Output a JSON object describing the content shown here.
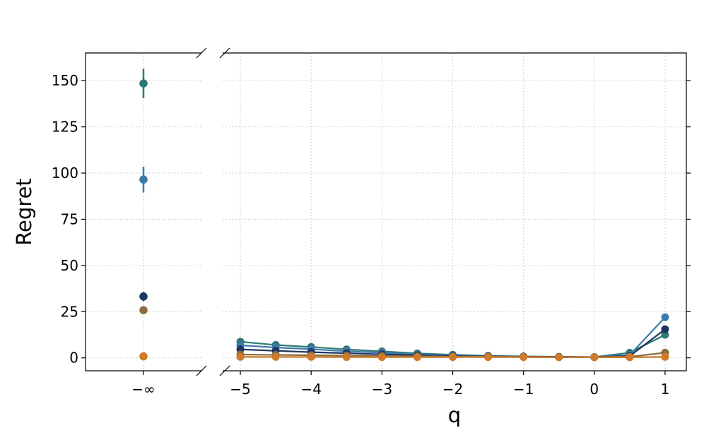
{
  "chart_data": {
    "type": "line",
    "title": "",
    "xlabel": "q",
    "ylabel": "Regret",
    "ylim": [
      -7,
      165
    ],
    "yticks": [
      0,
      25,
      50,
      75,
      100,
      125,
      150
    ],
    "ytick_labels": [
      "0",
      "25",
      "50",
      "75",
      "100",
      "125",
      "150"
    ],
    "left_panel": {
      "xtick_label": "−∞"
    },
    "right_panel": {
      "xlim": [
        -5.25,
        1.3
      ],
      "xticks": [
        -5,
        -4,
        -3,
        -2,
        -1,
        0,
        1
      ],
      "xtick_labels": [
        "−5",
        "−4",
        "−3",
        "−2",
        "−1",
        "0",
        "1"
      ]
    },
    "grid": true,
    "axis_break": true,
    "x": [
      -5,
      -4.5,
      -4,
      -3.5,
      -3,
      -2.5,
      -2,
      -1.5,
      -1,
      -0.5,
      0,
      0.5,
      1
    ],
    "series": [
      {
        "color": "#2c7a73",
        "neg_inf": 148.5,
        "neg_inf_err": 8,
        "values": [
          8.7,
          7.0,
          5.9,
          4.6,
          3.5,
          2.4,
          1.7,
          1.1,
          0.8,
          0.6,
          0.4,
          2.8,
          12.5
        ]
      },
      {
        "color": "#3e7aa8",
        "neg_inf": 96.5,
        "neg_inf_err": 7,
        "values": [
          6.8,
          5.6,
          4.7,
          3.6,
          2.8,
          1.9,
          1.4,
          1.0,
          0.7,
          0.5,
          0.4,
          1.5,
          22.0
        ]
      },
      {
        "color": "#1f3664",
        "neg_inf": 33.2,
        "neg_inf_err": 2.5,
        "values": [
          4.6,
          3.8,
          3.1,
          2.5,
          1.9,
          1.4,
          1.0,
          0.8,
          0.6,
          0.5,
          0.4,
          1.0,
          15.5
        ]
      },
      {
        "color": "#8c6d3c",
        "neg_inf": 25.8,
        "neg_inf_err": 1,
        "values": [
          1.8,
          1.6,
          1.4,
          1.2,
          1.0,
          0.8,
          0.7,
          0.6,
          0.5,
          0.4,
          0.4,
          0.6,
          2.8
        ]
      },
      {
        "color": "#cf7a2a",
        "neg_inf": 0.8,
        "neg_inf_err": 0.3,
        "values": [
          0.5,
          0.5,
          0.5,
          0.4,
          0.4,
          0.4,
          0.4,
          0.4,
          0.4,
          0.3,
          0.3,
          0.3,
          0.5
        ]
      }
    ]
  }
}
